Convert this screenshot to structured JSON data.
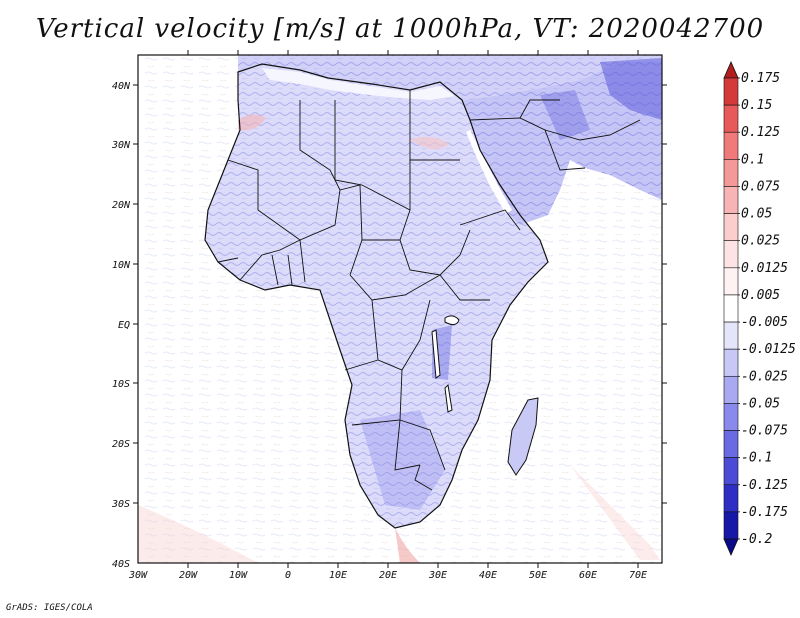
{
  "title": "Vertical velocity [m/s] at 1000hPa, VT: 2020042700",
  "credit": "GrADS: IGES/COLA",
  "lat_labels": [
    "40N",
    "30N",
    "20N",
    "10N",
    "EQ",
    "10S",
    "20S",
    "30S",
    "40S"
  ],
  "lon_labels": [
    "30W",
    "20W",
    "10W",
    "0",
    "10E",
    "20E",
    "30E",
    "40E",
    "50E",
    "60E",
    "70E"
  ],
  "colorbar": {
    "labels": [
      "0.175",
      "0.15",
      "0.125",
      "0.1",
      "0.075",
      "0.05",
      "0.025",
      "0.0125",
      "0.005",
      "-0.005",
      "-0.0125",
      "-0.025",
      "-0.05",
      "-0.075",
      "-0.1",
      "-0.125",
      "-0.175",
      "-0.2"
    ],
    "colors": [
      "#b21e1e",
      "#d43a3a",
      "#e85a5a",
      "#f07a7a",
      "#f49898",
      "#f8b4b4",
      "#fbcdcd",
      "#fde3e3",
      "#fff2f2",
      "#ffffff",
      "#e4e4fb",
      "#c8c8f7",
      "#a9a9f2",
      "#8a8aec",
      "#6a6ae3",
      "#4b4bd6",
      "#2e2ec4",
      "#1818a8",
      "#0a0a8a"
    ]
  }
}
